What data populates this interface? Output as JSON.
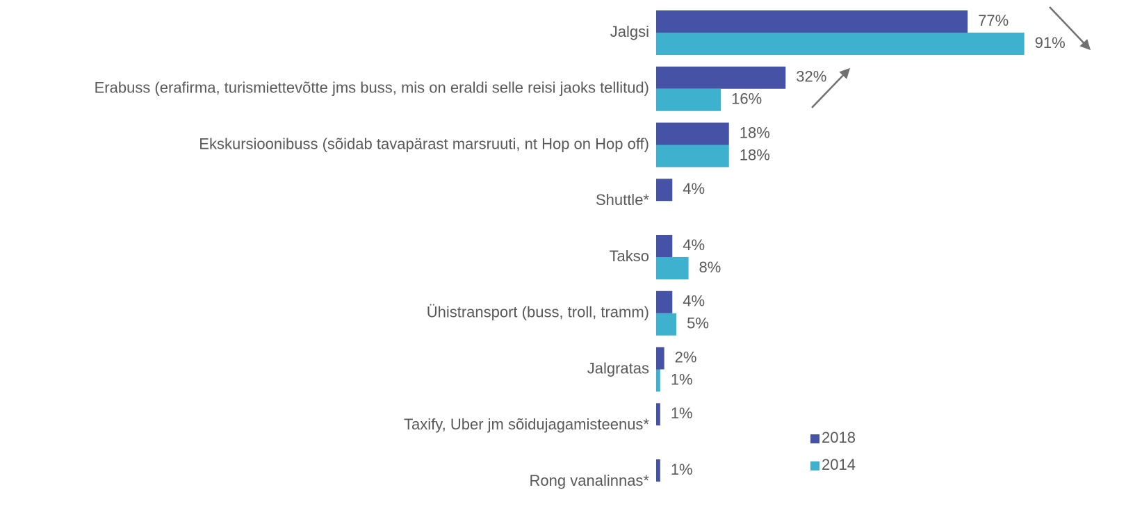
{
  "chart_data": {
    "type": "bar",
    "orientation": "horizontal",
    "categories": [
      "Jalgsi",
      "Erabuss (erafirma, turismiettevõtte jms buss, mis on eraldi selle reisi jaoks tellitud)",
      "Ekskursioonibuss (sõidab tavapärast marsruuti, nt Hop on Hop off)",
      "Shuttle*",
      "Takso",
      "Ühistransport (buss, troll, tramm)",
      "Jalgratas",
      "Taxify, Uber jm sõidujagamisteenus*",
      "Rong vanalinnas*"
    ],
    "series": [
      {
        "name": "2018",
        "color": "#4652a6",
        "values": [
          77,
          32,
          18,
          4,
          4,
          4,
          2,
          1,
          1
        ],
        "value_labels": [
          "77%",
          "32%",
          "18%",
          "4%",
          "4%",
          "4%",
          "2%",
          "1%",
          "1%"
        ]
      },
      {
        "name": "2014",
        "color": "#3eb1cf",
        "values": [
          91,
          16,
          18,
          null,
          8,
          5,
          1,
          null,
          null
        ],
        "value_labels": [
          "91%",
          "16%",
          "18%",
          null,
          "8%",
          "5%",
          "1%",
          null,
          null
        ]
      }
    ],
    "xlim": [
      0,
      100
    ]
  }
}
